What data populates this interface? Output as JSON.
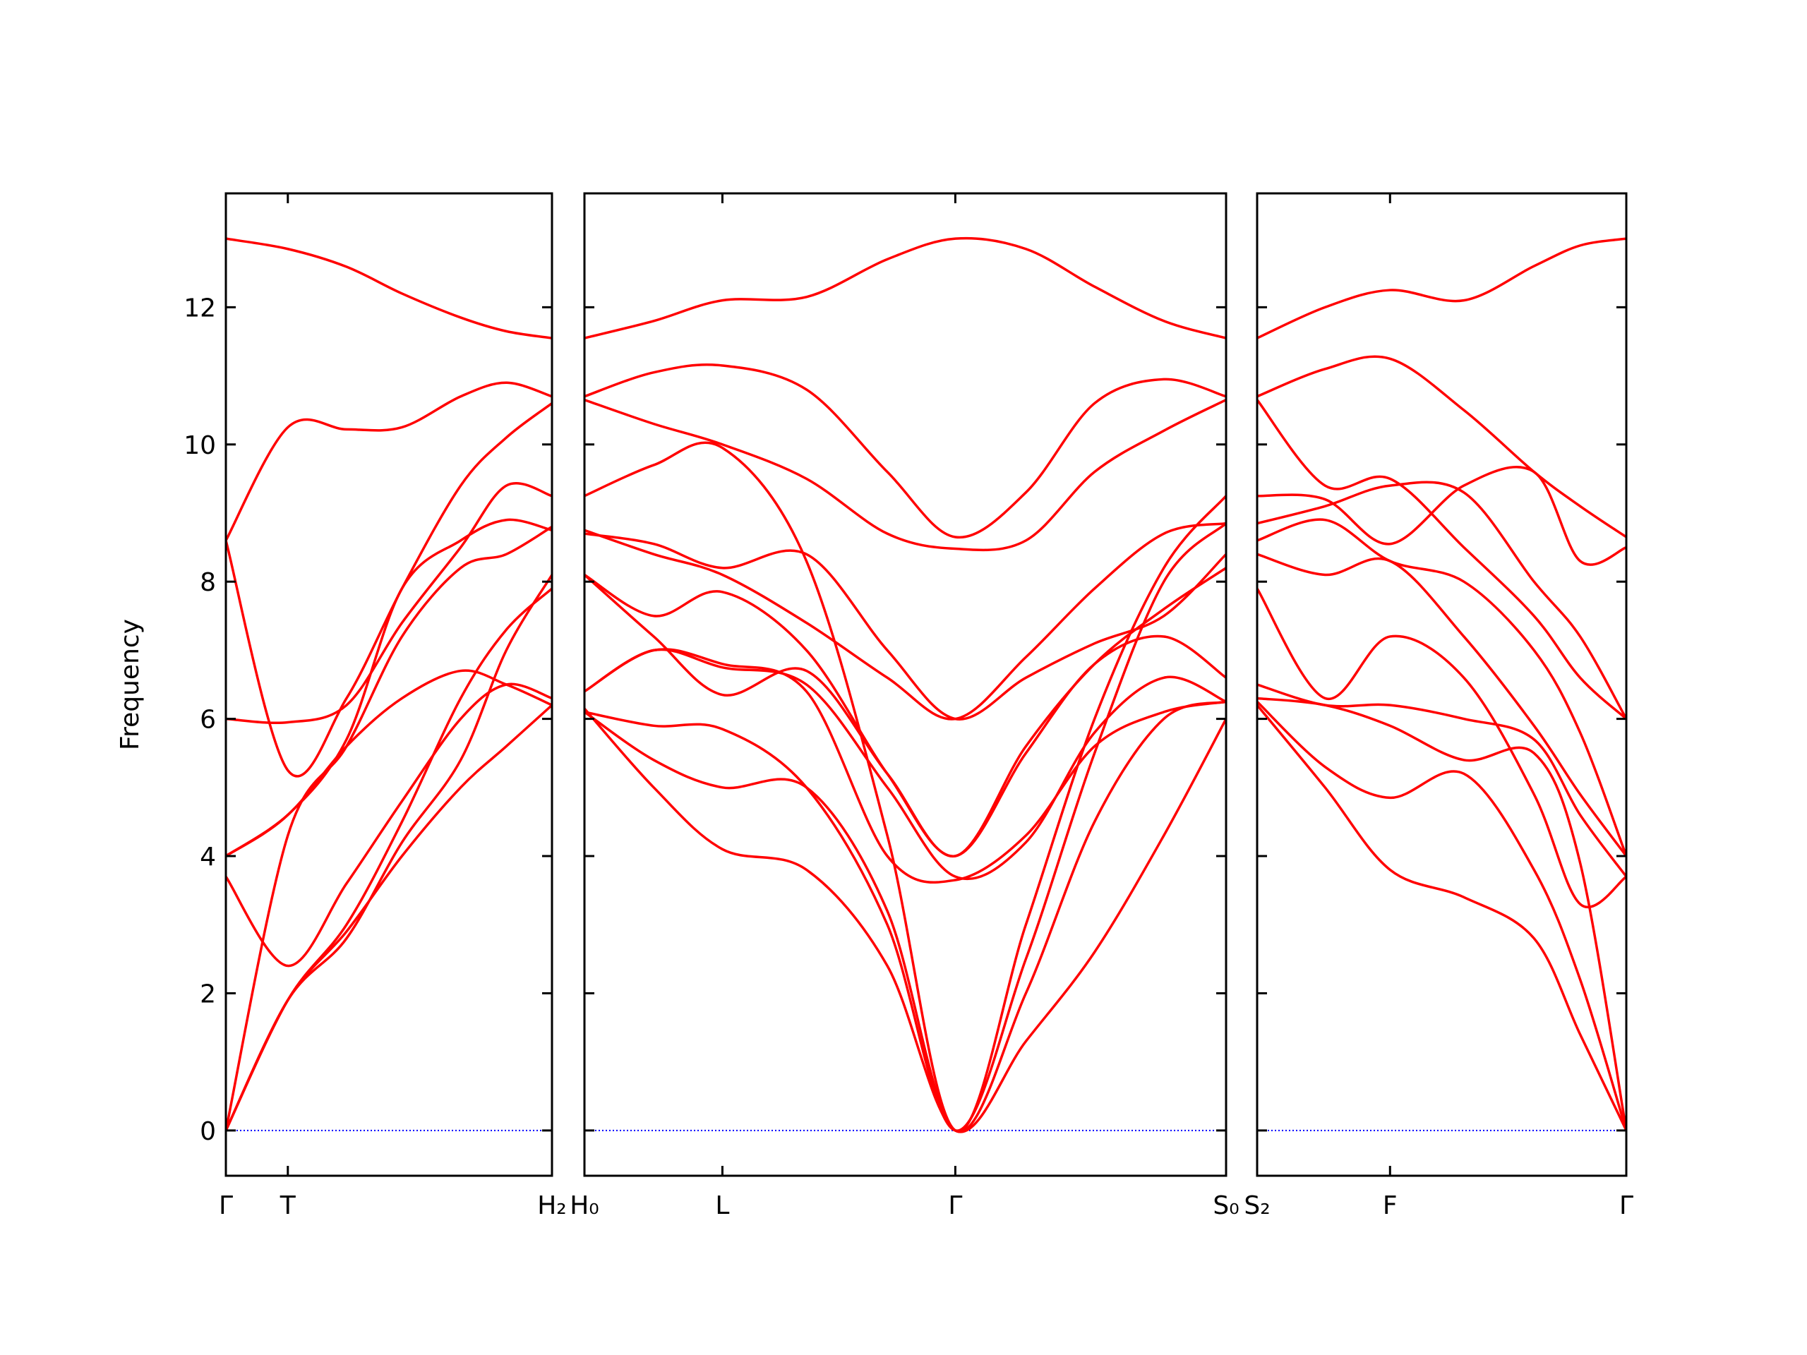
{
  "chart_data": [
    {
      "type": "line",
      "ylabel": "Frequency",
      "ytick_labels": true,
      "color": "#ff0000",
      "zero_line": {
        "y": 0,
        "color": "#0000ff"
      },
      "xlim": [
        0,
        1
      ],
      "ylim": [
        -0.66,
        13.66
      ],
      "xticks": [
        {
          "value": 0,
          "label": "Γ"
        },
        {
          "value": 0.19,
          "label": "T"
        },
        {
          "value": 1,
          "label": "H₂"
        }
      ],
      "yticks": [
        0,
        2,
        4,
        6,
        8,
        10,
        12
      ],
      "x": [
        0,
        0.19,
        0.37,
        0.54,
        0.72,
        0.86,
        1
      ],
      "series": [
        {
          "values": [
            13.0,
            12.85,
            12.59,
            12.2,
            11.85,
            11.65,
            11.55
          ]
        },
        {
          "values": [
            8.6,
            10.25,
            10.22,
            10.25,
            10.7,
            10.9,
            10.7
          ]
        },
        {
          "values": [
            8.6,
            5.25,
            6.3,
            7.9,
            9.4,
            10.1,
            10.6
          ]
        },
        {
          "values": [
            6.0,
            5.95,
            6.2,
            7.4,
            8.5,
            9.4,
            9.25
          ]
        },
        {
          "values": [
            4.0,
            4.6,
            5.7,
            7.9,
            8.6,
            8.9,
            8.75
          ]
        },
        {
          "values": [
            0,
            4.3,
            5.6,
            7.2,
            8.2,
            8.4,
            8.8
          ]
        },
        {
          "values": [
            4.0,
            4.6,
            5.6,
            6.3,
            6.7,
            6.5,
            6.2
          ]
        },
        {
          "values": [
            3.7,
            2.4,
            3.6,
            4.8,
            6.0,
            6.5,
            6.3
          ]
        },
        {
          "values": [
            0,
            1.9,
            2.8,
            4.2,
            5.4,
            7.0,
            8.1
          ]
        },
        {
          "values": [
            0,
            1.9,
            3.0,
            4.5,
            6.3,
            7.3,
            7.9
          ]
        },
        {
          "values": [
            0,
            1.9,
            2.9,
            4.0,
            5.0,
            5.6,
            6.2
          ]
        }
      ]
    },
    {
      "type": "line",
      "ytick_labels": false,
      "color": "#ff0000",
      "zero_line": {
        "y": 0,
        "color": "#0000ff"
      },
      "xlim": [
        0,
        1
      ],
      "ylim": [
        -0.66,
        13.66
      ],
      "xticks": [
        {
          "value": 0,
          "label": "H₀"
        },
        {
          "value": 0.215,
          "label": "L"
        },
        {
          "value": 0.578,
          "label": "Γ"
        },
        {
          "value": 1,
          "label": "S₀"
        }
      ],
      "yticks": [
        0,
        2,
        4,
        6,
        8,
        10,
        12
      ],
      "x": [
        0,
        0.108,
        0.215,
        0.346,
        0.472,
        0.578,
        0.688,
        0.795,
        0.903,
        1
      ],
      "series": [
        {
          "values": [
            11.55,
            11.8,
            12.1,
            12.15,
            12.7,
            13.0,
            12.85,
            12.3,
            11.8,
            11.55
          ]
        },
        {
          "values": [
            10.7,
            11.05,
            11.15,
            10.8,
            9.6,
            8.65,
            9.3,
            10.6,
            10.95,
            10.7
          ]
        },
        {
          "values": [
            10.65,
            10.3,
            10.0,
            9.5,
            8.7,
            8.48,
            8.6,
            9.6,
            10.2,
            10.65
          ]
        },
        {
          "values": [
            9.25,
            9.7,
            9.95,
            8.3,
            4.3,
            0,
            3.0,
            6.0,
            8.2,
            9.25
          ]
        },
        {
          "values": [
            8.75,
            8.4,
            8.1,
            7.4,
            6.6,
            6.0,
            6.9,
            7.9,
            8.7,
            8.85
          ]
        },
        {
          "values": [
            8.7,
            8.55,
            8.2,
            8.4,
            7.0,
            6.0,
            6.6,
            7.1,
            7.5,
            8.4
          ]
        },
        {
          "values": [
            8.1,
            7.5,
            7.85,
            7.0,
            5.2,
            4.0,
            5.5,
            6.8,
            7.2,
            6.6
          ]
        },
        {
          "values": [
            8.1,
            7.2,
            6.35,
            6.7,
            5.2,
            4.0,
            5.6,
            6.8,
            7.6,
            8.2
          ]
        },
        {
          "values": [
            6.4,
            7.0,
            6.75,
            6.5,
            5.0,
            3.7,
            4.2,
            5.8,
            6.6,
            6.25
          ]
        },
        {
          "values": [
            6.4,
            7.0,
            6.8,
            6.4,
            4.0,
            3.65,
            4.3,
            5.6,
            6.1,
            6.25
          ]
        },
        {
          "values": [
            6.1,
            5.4,
            5.0,
            5.0,
            3.2,
            0,
            2.0,
            4.5,
            6.0,
            6.25
          ]
        },
        {
          "values": [
            6.15,
            5.0,
            4.1,
            3.8,
            2.4,
            0,
            1.3,
            2.6,
            4.3,
            6.0
          ]
        },
        {
          "values": [
            6.1,
            5.9,
            5.85,
            5.0,
            3.0,
            0,
            2.5,
            5.5,
            8.0,
            8.85
          ]
        }
      ]
    },
    {
      "type": "line",
      "ytick_labels": false,
      "color": "#ff0000",
      "zero_line": {
        "y": 0,
        "color": "#0000ff"
      },
      "xlim": [
        0,
        1
      ],
      "ylim": [
        -0.66,
        13.66
      ],
      "xticks": [
        {
          "value": 0,
          "label": "S₂"
        },
        {
          "value": 0.36,
          "label": "F"
        },
        {
          "value": 1,
          "label": "Γ"
        }
      ],
      "yticks": [
        0,
        2,
        4,
        6,
        8,
        10,
        12
      ],
      "x": [
        0,
        0.184,
        0.36,
        0.56,
        0.75,
        0.875,
        1
      ],
      "series": [
        {
          "values": [
            11.55,
            12.0,
            12.25,
            12.1,
            12.6,
            12.9,
            13.0
          ]
        },
        {
          "values": [
            10.7,
            11.1,
            11.25,
            10.5,
            9.6,
            9.1,
            8.65
          ]
        },
        {
          "values": [
            10.65,
            9.4,
            9.5,
            8.5,
            7.5,
            6.6,
            6.0
          ]
        },
        {
          "values": [
            9.25,
            9.2,
            8.55,
            9.4,
            9.6,
            8.3,
            8.5
          ]
        },
        {
          "values": [
            8.85,
            9.1,
            9.4,
            9.3,
            8.0,
            7.2,
            6.0
          ]
        },
        {
          "values": [
            8.6,
            8.9,
            8.3,
            8.0,
            7.0,
            5.8,
            4.0
          ]
        },
        {
          "values": [
            8.4,
            8.1,
            8.3,
            7.2,
            5.9,
            4.9,
            4.0
          ]
        },
        {
          "values": [
            7.9,
            6.3,
            7.2,
            6.6,
            4.9,
            3.3,
            3.7
          ]
        },
        {
          "values": [
            6.5,
            6.2,
            6.2,
            6.0,
            5.7,
            4.6,
            3.7
          ]
        },
        {
          "values": [
            6.3,
            6.2,
            5.9,
            5.4,
            5.5,
            3.9,
            0
          ]
        },
        {
          "values": [
            6.25,
            5.3,
            4.85,
            5.2,
            3.8,
            2.2,
            0
          ]
        },
        {
          "values": [
            6.2,
            5.0,
            3.8,
            3.4,
            2.8,
            1.4,
            0
          ]
        }
      ]
    }
  ]
}
